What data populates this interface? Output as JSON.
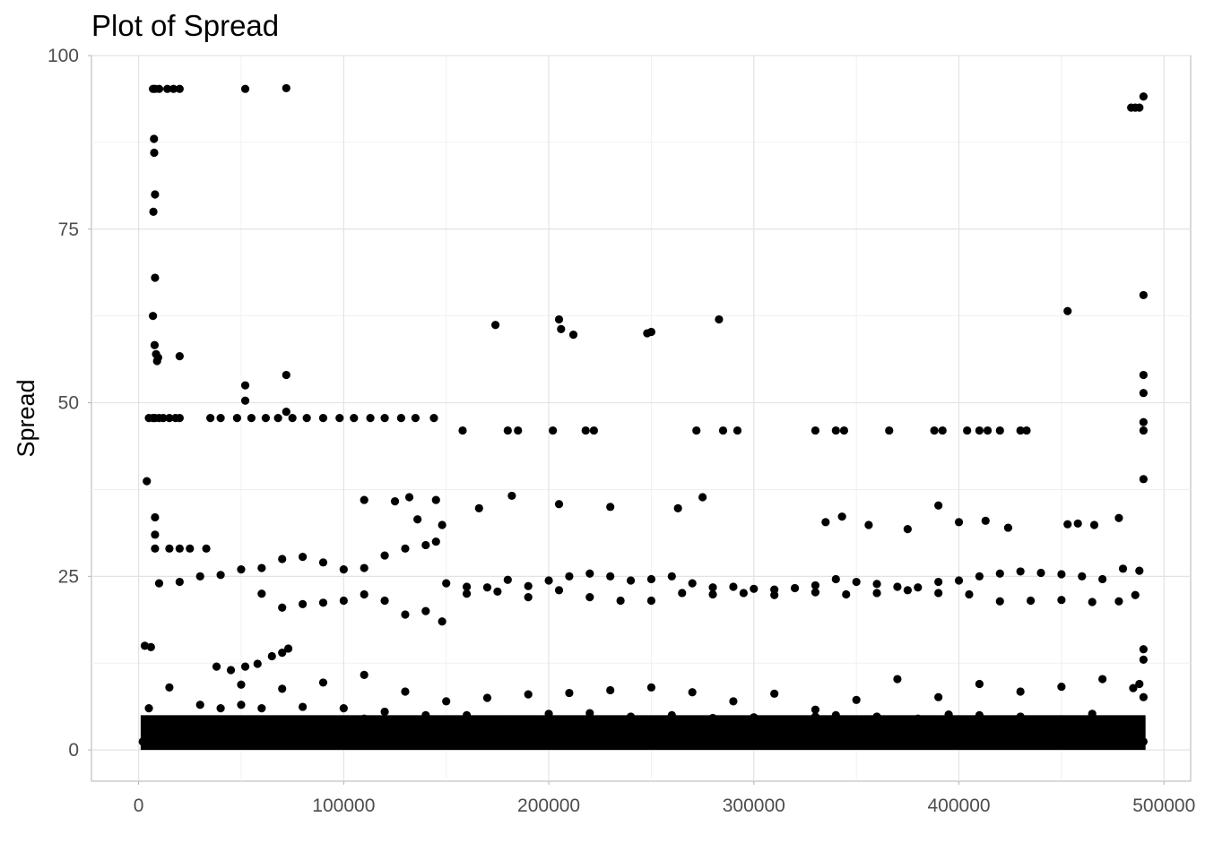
{
  "chart_data": {
    "type": "scatter",
    "title": "Plot of Spread",
    "xlabel": "",
    "ylabel": "Spread",
    "xlim": [
      -23000,
      513000
    ],
    "ylim": [
      -4.5,
      100
    ],
    "x_ticks": [
      0,
      100000,
      200000,
      300000,
      400000,
      500000
    ],
    "x_tick_labels": [
      "0",
      "100000",
      "200000",
      "300000",
      "400000",
      "500000"
    ],
    "y_ticks": [
      0,
      25,
      50,
      75,
      100
    ],
    "y_tick_labels": [
      "0",
      "25",
      "50",
      "75",
      "100"
    ],
    "grid": true,
    "point_color": "#000000",
    "series": [
      {
        "x": [
          7000,
          8000,
          10000,
          14000,
          17000,
          20000,
          52000,
          72000,
          488000,
          486000,
          484000,
          490000,
          7500,
          7600,
          8000,
          7200,
          8000,
          7000,
          7800,
          8500,
          9000,
          9500,
          20000,
          52000,
          52000,
          72000,
          72000,
          7000,
          5000,
          8000,
          10000,
          12000,
          15000,
          18000,
          20000,
          35000,
          40000,
          48000,
          55000,
          62000,
          68000,
          75000,
          82000,
          90000,
          98000,
          105000,
          113000,
          120000,
          128000,
          135000,
          144000,
          174000,
          205000,
          206000,
          212000,
          248000,
          250000,
          283000,
          453000,
          490000,
          158000,
          180000,
          185000,
          202000,
          218000,
          222000,
          272000,
          285000,
          292000,
          330000,
          340000,
          344000,
          366000,
          388000,
          392000,
          404000,
          410000,
          414000,
          420000,
          430000,
          433000,
          490000,
          490000,
          490000,
          490000,
          490000,
          4000,
          8000,
          110000,
          125000,
          132000,
          136000,
          145000,
          148000,
          166000,
          182000,
          205000,
          230000,
          263000,
          275000,
          335000,
          343000,
          356000,
          375000,
          390000,
          400000,
          413000,
          424000,
          453000,
          458000,
          466000,
          478000,
          8000,
          8000,
          15000,
          20000,
          25000,
          33000,
          10000,
          20000,
          30000,
          40000,
          50000,
          60000,
          70000,
          80000,
          90000,
          100000,
          110000,
          120000,
          130000,
          140000,
          145000,
          150000,
          160000,
          170000,
          180000,
          190000,
          200000,
          210000,
          220000,
          230000,
          240000,
          250000,
          260000,
          270000,
          280000,
          290000,
          300000,
          310000,
          320000,
          330000,
          340000,
          350000,
          360000,
          370000,
          380000,
          390000,
          400000,
          410000,
          420000,
          430000,
          440000,
          450000,
          460000,
          470000,
          480000,
          488000,
          60000,
          70000,
          80000,
          90000,
          100000,
          110000,
          120000,
          130000,
          140000,
          148000,
          160000,
          175000,
          190000,
          205000,
          220000,
          235000,
          250000,
          265000,
          280000,
          295000,
          310000,
          330000,
          345000,
          360000,
          375000,
          390000,
          405000,
          420000,
          435000,
          450000,
          465000,
          478000,
          486000,
          38000,
          45000,
          52000,
          58000,
          65000,
          70000,
          73000,
          3000,
          6000,
          490000,
          490000,
          488000,
          490000,
          40000,
          50000,
          60000,
          80000,
          100000,
          110000,
          120000,
          140000,
          160000,
          180000,
          200000,
          220000,
          240000,
          260000,
          280000,
          300000,
          330000,
          340000,
          360000,
          380000,
          395000,
          410000,
          430000,
          450000,
          465000,
          5000,
          15000,
          30000,
          50000,
          70000,
          90000,
          110000,
          130000,
          150000,
          170000,
          190000,
          210000,
          230000,
          250000,
          270000,
          290000,
          310000,
          330000,
          350000,
          370000,
          390000,
          410000,
          430000,
          450000,
          470000,
          485000,
          2000,
          4000,
          8000,
          12000,
          20000,
          40000,
          60000,
          80000,
          100000,
          120000,
          140000,
          160000,
          180000,
          200000,
          220000,
          240000,
          260000,
          280000,
          300000,
          320000,
          340000,
          360000,
          380000,
          400000,
          420000,
          440000,
          460000,
          480000,
          490000
        ],
        "y": [
          95.2,
          95.2,
          95.2,
          95.2,
          95.2,
          95.2,
          95.2,
          95.3,
          92.5,
          92.5,
          92.5,
          94.1,
          88,
          86,
          80,
          77.5,
          68,
          62.5,
          58.3,
          57,
          56,
          56.5,
          56.7,
          52.5,
          50.3,
          54,
          48.7,
          47.8,
          47.8,
          47.8,
          47.8,
          47.8,
          47.8,
          47.8,
          47.8,
          47.8,
          47.8,
          47.8,
          47.8,
          47.8,
          47.8,
          47.8,
          47.8,
          47.8,
          47.8,
          47.8,
          47.8,
          47.8,
          47.8,
          47.8,
          47.8,
          61.2,
          62,
          60.6,
          59.8,
          60,
          60.2,
          62,
          63.2,
          65.5,
          46,
          46,
          46,
          46,
          46,
          46,
          46,
          46,
          46,
          46,
          46,
          46,
          46,
          46,
          46,
          46,
          46,
          46,
          46,
          46,
          46,
          54,
          51.4,
          47.2,
          46,
          39,
          38.7,
          29,
          36,
          35.8,
          36.4,
          33.2,
          36,
          32.4,
          34.8,
          36.6,
          35.4,
          35,
          34.8,
          36.4,
          32.8,
          33.6,
          32.4,
          31.8,
          35.2,
          32.8,
          33,
          32,
          32.5,
          32.6,
          32.4,
          33.4,
          33.5,
          31,
          29,
          29,
          29,
          29,
          24,
          24.2,
          25,
          25.2,
          26,
          26.2,
          27.5,
          27.8,
          27,
          26,
          26.2,
          28,
          29,
          29.5,
          30,
          24,
          23.5,
          23.4,
          24.5,
          23.6,
          24.4,
          25,
          25.4,
          25,
          24.4,
          24.6,
          25,
          24,
          23.4,
          23.5,
          23.2,
          23.1,
          23.3,
          23.7,
          24.6,
          24.2,
          23.9,
          23.5,
          23.4,
          24.2,
          24.4,
          25,
          25.4,
          25.7,
          25.5,
          25.3,
          25,
          24.6,
          26.1,
          25.8,
          22.5,
          20.5,
          21,
          21.2,
          21.5,
          22.4,
          21.5,
          19.5,
          20,
          18.5,
          22.5,
          22.8,
          22,
          23,
          22,
          21.5,
          21.5,
          22.6,
          22.4,
          22.6,
          22.3,
          22.7,
          22.4,
          22.6,
          23,
          22.6,
          22.4,
          21.4,
          21.5,
          21.6,
          21.3,
          21.4,
          22.3,
          12,
          11.5,
          12,
          12.4,
          13.5,
          14,
          14.6,
          15,
          14.8,
          14.5,
          13,
          9.5,
          7.6,
          6,
          6.5,
          6,
          6.2,
          6,
          4.5,
          5.5,
          5,
          5,
          4.4,
          5.2,
          5.3,
          4.8,
          5,
          4.6,
          4.7,
          4.8,
          5,
          4.8,
          4.5,
          5.1,
          5,
          4.8,
          4.4,
          5.2,
          6,
          9,
          6.5,
          9.4,
          8.8,
          9.7,
          10.8,
          8.4,
          7,
          7.5,
          8,
          8.2,
          8.6,
          9,
          8.3,
          7,
          8.1,
          5.8,
          7.2,
          10.2,
          7.6,
          9.5,
          8.4,
          9.1,
          10.2,
          8.9,
          1.2,
          1.8,
          2,
          1.5,
          1.4,
          2.3,
          1.6,
          1.9,
          1.4,
          2.1,
          1.5,
          2.4,
          1.3,
          1.8,
          2,
          1.5,
          2.1,
          1.4,
          1.9,
          1.6,
          2.2,
          1.3,
          1.8,
          1.5,
          2,
          1.6,
          2.3,
          1.7,
          1.2
        ]
      }
    ]
  }
}
